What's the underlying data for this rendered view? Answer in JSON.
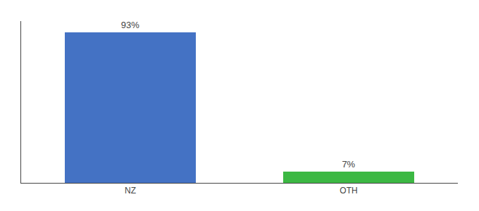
{
  "chart_data": {
    "type": "bar",
    "categories": [
      "NZ",
      "OTH"
    ],
    "values": [
      93,
      7
    ],
    "value_labels": [
      "93%",
      "7%"
    ],
    "colors": [
      "#4472c4",
      "#3cb843"
    ],
    "ylim": [
      0,
      100
    ],
    "yticks": [],
    "grid": false,
    "data_labels": true,
    "tick_labels": "x"
  }
}
